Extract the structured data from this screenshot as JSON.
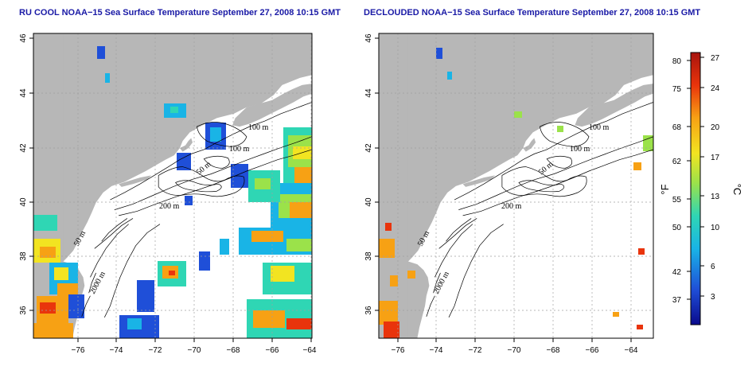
{
  "panels": [
    {
      "title": "RU COOL NOAA−15 Sea Surface Temperature September 27, 2008 10:15 GMT"
    },
    {
      "title": "DECLOUDED NOAA−15 Sea Surface Temperature September 27, 2008 10:15 GMT"
    }
  ],
  "axes": {
    "x_ticks": [
      "−76",
      "−74",
      "−72",
      "−70",
      "−68",
      "−66",
      "−64"
    ],
    "y_ticks": [
      "36",
      "38",
      "40",
      "42",
      "44",
      "46"
    ],
    "lon_range": [
      -77.2,
      -63
    ],
    "lat_range": [
      35,
      46
    ]
  },
  "contour_labels": [
    "100 m",
    "100 m",
    "50 m",
    "200 m",
    "50 m",
    "2000 m"
  ],
  "colorbar": {
    "fahrenheit_label": "°F",
    "celsius_label": "°C",
    "fahrenheit_ticks": [
      "80",
      "75",
      "68",
      "62",
      "55",
      "50",
      "42",
      "37"
    ],
    "celsius_ticks": [
      "27",
      "24",
      "20",
      "17",
      "13",
      "10",
      "6",
      "3"
    ],
    "colors": [
      "#0a0a8c",
      "#1f4fd8",
      "#19b4e6",
      "#2fd6b4",
      "#9be24a",
      "#f2e421",
      "#f7a114",
      "#e9340c",
      "#a8140e"
    ]
  },
  "legend_colors": {
    "land": "#b7b7b7",
    "ocean": "#ffffff",
    "title": "#1a1aa6"
  }
}
